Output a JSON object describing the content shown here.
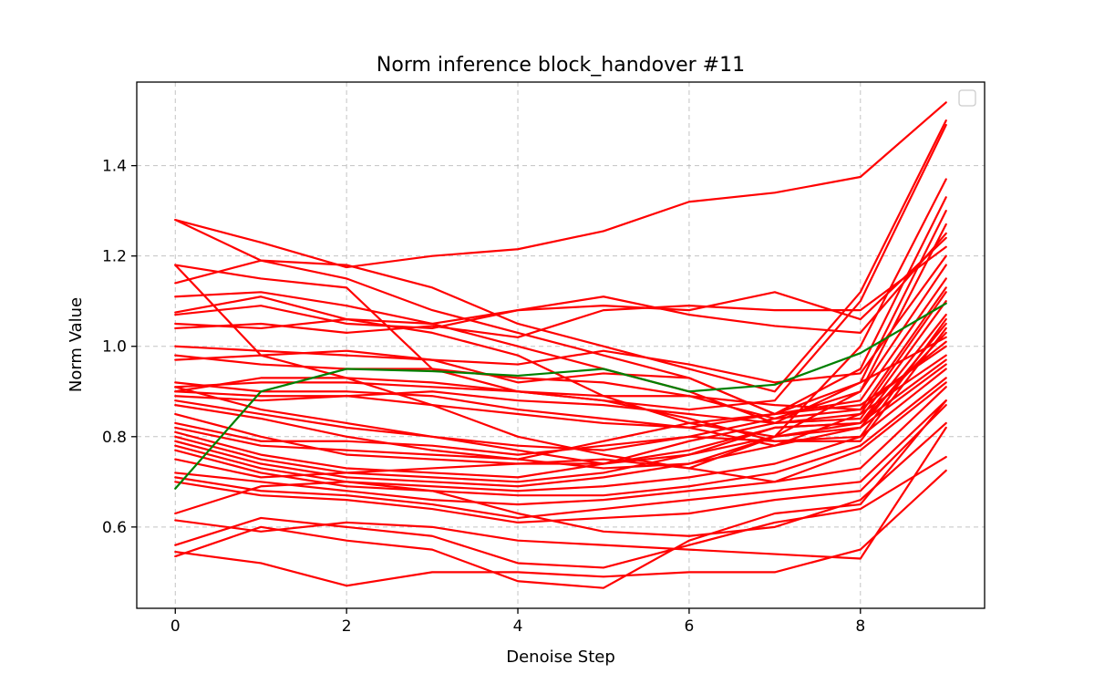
{
  "chart_data": {
    "type": "line",
    "title": "Norm inference block_handover #11",
    "xlabel": "Denoise Step",
    "ylabel": "Norm Value",
    "xlim": [
      -0.45,
      9.45
    ],
    "ylim": [
      0.42,
      1.585
    ],
    "xticks": [
      0,
      2,
      4,
      6,
      8
    ],
    "yticks": [
      0.6,
      0.8,
      1.0,
      1.2,
      1.4
    ],
    "ytick_labels": [
      "0.6",
      "0.8",
      "1.0",
      "1.2",
      "1.4"
    ],
    "grid": true,
    "legend": {
      "placement": "top-right",
      "entries": []
    },
    "x": [
      0,
      1,
      2,
      3,
      4,
      5,
      6,
      7,
      8,
      9
    ],
    "colors": {
      "series": "#ff0000",
      "highlight": "#008000"
    },
    "series": [
      {
        "values": [
          1.28,
          1.23,
          1.175,
          1.2,
          1.215,
          1.255,
          1.32,
          1.34,
          1.375,
          1.54
        ]
      },
      {
        "values": [
          1.28,
          1.19,
          1.18,
          1.13,
          1.05,
          1.0,
          0.95,
          0.9,
          1.12,
          1.5
        ]
      },
      {
        "values": [
          1.18,
          1.15,
          1.13,
          0.95,
          0.9,
          0.88,
          0.86,
          0.88,
          1.1,
          1.49
        ]
      },
      {
        "values": [
          1.18,
          0.98,
          0.93,
          0.87,
          0.8,
          0.76,
          0.73,
          0.8,
          1.0,
          1.37
        ]
      },
      {
        "values": [
          1.14,
          1.19,
          1.15,
          1.08,
          1.03,
          0.98,
          0.93,
          0.85,
          0.95,
          1.33
        ]
      },
      {
        "values": [
          1.11,
          1.12,
          1.09,
          1.05,
          1.0,
          0.95,
          0.9,
          0.83,
          0.92,
          1.3
        ]
      },
      {
        "values": [
          1.075,
          1.11,
          1.06,
          1.03,
          0.98,
          0.89,
          0.83,
          0.8,
          0.9,
          1.27
        ]
      },
      {
        "values": [
          1.07,
          1.09,
          1.05,
          1.04,
          1.08,
          1.11,
          1.07,
          1.045,
          1.03,
          1.25
        ]
      },
      {
        "values": [
          1.05,
          1.04,
          1.06,
          1.05,
          1.08,
          1.09,
          1.08,
          1.12,
          1.06,
          1.24
        ]
      },
      {
        "values": [
          1.04,
          1.05,
          1.03,
          1.045,
          1.02,
          1.08,
          1.09,
          1.08,
          1.08,
          1.22
        ]
      },
      {
        "values": [
          1.0,
          0.99,
          0.98,
          0.97,
          0.96,
          0.99,
          0.96,
          0.92,
          0.94,
          1.2
        ]
      },
      {
        "values": [
          0.98,
          0.96,
          0.95,
          0.95,
          0.93,
          0.92,
          0.89,
          0.84,
          0.9,
          1.18
        ]
      },
      {
        "values": [
          0.97,
          0.98,
          0.99,
          0.97,
          0.92,
          0.94,
          0.93,
          0.85,
          0.88,
          1.15
        ]
      },
      {
        "values": [
          0.91,
          0.92,
          0.92,
          0.91,
          0.9,
          0.89,
          0.89,
          0.87,
          0.86,
          1.13
        ]
      },
      {
        "values": [
          0.9,
          0.89,
          0.89,
          0.87,
          0.85,
          0.83,
          0.82,
          0.78,
          0.85,
          1.12
        ]
      },
      {
        "values": [
          0.89,
          0.88,
          0.89,
          0.9,
          0.88,
          0.87,
          0.85,
          0.83,
          0.84,
          1.1
        ]
      },
      {
        "values": [
          0.88,
          0.85,
          0.82,
          0.8,
          0.77,
          0.74,
          0.76,
          0.82,
          0.83,
          1.07
        ]
      },
      {
        "values": [
          0.87,
          0.84,
          0.8,
          0.77,
          0.75,
          0.73,
          0.74,
          0.8,
          0.82,
          1.05
        ]
      },
      {
        "values": [
          0.85,
          0.8,
          0.76,
          0.75,
          0.74,
          0.74,
          0.77,
          0.82,
          0.83,
          1.03
        ]
      },
      {
        "values": [
          0.83,
          0.79,
          0.79,
          0.78,
          0.76,
          0.78,
          0.8,
          0.84,
          0.86,
          1.01
        ]
      },
      {
        "values": [
          0.82,
          0.78,
          0.77,
          0.76,
          0.75,
          0.79,
          0.83,
          0.85,
          0.87,
          1.0
        ]
      },
      {
        "values": [
          0.81,
          0.76,
          0.73,
          0.72,
          0.71,
          0.74,
          0.79,
          0.83,
          0.85,
          0.98
        ]
      },
      {
        "values": [
          0.8,
          0.75,
          0.72,
          0.71,
          0.7,
          0.72,
          0.76,
          0.8,
          0.83,
          0.97
        ]
      },
      {
        "values": [
          0.79,
          0.74,
          0.71,
          0.7,
          0.69,
          0.71,
          0.74,
          0.78,
          0.82,
          0.96
        ]
      },
      {
        "values": [
          0.78,
          0.73,
          0.7,
          0.69,
          0.68,
          0.69,
          0.71,
          0.74,
          0.8,
          0.95
        ]
      },
      {
        "values": [
          0.77,
          0.72,
          0.69,
          0.68,
          0.67,
          0.67,
          0.69,
          0.72,
          0.78,
          0.93
        ]
      },
      {
        "values": [
          0.75,
          0.71,
          0.72,
          0.73,
          0.74,
          0.75,
          0.73,
          0.7,
          0.77,
          0.92
        ]
      },
      {
        "values": [
          0.72,
          0.7,
          0.68,
          0.66,
          0.65,
          0.66,
          0.68,
          0.7,
          0.73,
          0.91
        ]
      },
      {
        "values": [
          0.71,
          0.68,
          0.67,
          0.65,
          0.62,
          0.64,
          0.66,
          0.68,
          0.7,
          0.88
        ]
      },
      {
        "values": [
          0.7,
          0.67,
          0.66,
          0.64,
          0.61,
          0.62,
          0.63,
          0.66,
          0.68,
          0.87
        ]
      },
      {
        "values": [
          0.63,
          0.69,
          0.7,
          0.68,
          0.63,
          0.59,
          0.58,
          0.6,
          0.66,
          0.83
        ]
      },
      {
        "values": [
          0.615,
          0.59,
          0.61,
          0.6,
          0.57,
          0.56,
          0.55,
          0.54,
          0.53,
          0.82
        ]
      },
      {
        "values": [
          0.56,
          0.62,
          0.6,
          0.58,
          0.52,
          0.51,
          0.56,
          0.61,
          0.64,
          0.755
        ]
      },
      {
        "values": [
          0.545,
          0.52,
          0.47,
          0.5,
          0.5,
          0.49,
          0.5,
          0.5,
          0.55,
          0.725
        ]
      },
      {
        "values": [
          0.535,
          0.6,
          0.57,
          0.55,
          0.48,
          0.465,
          0.57,
          0.63,
          0.65,
          0.88
        ]
      },
      {
        "values": [
          0.9,
          0.93,
          0.93,
          0.92,
          0.9,
          0.88,
          0.84,
          0.79,
          0.8,
          1.06
        ]
      },
      {
        "values": [
          0.91,
          0.86,
          0.83,
          0.8,
          0.78,
          0.77,
          0.8,
          0.79,
          0.79,
          1.04
        ]
      },
      {
        "values": [
          0.92,
          0.9,
          0.9,
          0.89,
          0.86,
          0.84,
          0.82,
          0.85,
          0.92,
          1.02
        ]
      }
    ],
    "highlight_series": {
      "values": [
        0.685,
        0.9,
        0.95,
        0.945,
        0.935,
        0.95,
        0.9,
        0.915,
        0.985,
        1.095
      ]
    }
  }
}
